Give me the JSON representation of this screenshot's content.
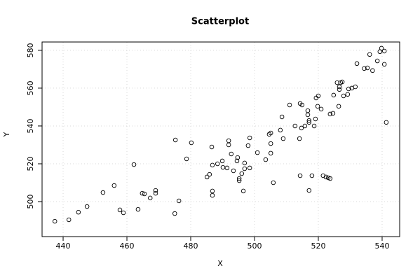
{
  "chart_data": {
    "type": "scatter",
    "title": "Scatterplot",
    "x_label": "X",
    "y_label": "Y",
    "x": [
      437.4,
      441.8,
      444.8,
      447.5,
      452.5,
      456.0,
      457.8,
      458.9,
      462.2,
      463.5,
      464.8,
      465.5,
      467.3,
      469.0,
      469.0,
      475.0,
      475.2,
      476.3,
      478.7,
      480.2,
      485.1,
      485.9,
      486.6,
      486.8,
      486.8,
      486.8,
      488.4,
      489.9,
      490.1,
      491.4,
      491.9,
      491.9,
      492.7,
      493.4,
      494.5,
      494.7,
      495.2,
      495.2,
      496.0,
      496.5,
      496.9,
      496.9,
      498.0,
      498.5,
      498.5,
      500.9,
      503.5,
      504.6,
      505.1,
      505.1,
      505.1,
      505.9,
      508.1,
      508.6,
      509.0,
      511.0,
      512.7,
      514.1,
      514.3,
      514.3,
      514.7,
      514.9,
      515.8,
      516.7,
      516.7,
      517.1,
      517.1,
      517.1,
      518.0,
      518.7,
      519.1,
      519.3,
      520.0,
      519.8,
      520.9,
      521.5,
      522.4,
      523.1,
      523.7,
      523.7,
      524.6,
      524.8,
      525.9,
      526.4,
      526.6,
      526.6,
      527.0,
      527.5,
      527.9,
      529.2,
      529.5,
      530.5,
      531.6,
      532.1,
      534.4,
      535.4,
      536.1,
      537.0,
      538.5,
      539.3,
      539.8,
      540.7,
      540.7,
      541.3
    ],
    "values": [
      489.6,
      490.4,
      494.4,
      497.4,
      504.8,
      508.5,
      495.6,
      494.1,
      519.6,
      495.9,
      504.4,
      504.1,
      501.9,
      505.9,
      504.4,
      493.7,
      532.6,
      500.4,
      522.6,
      531.1,
      513.0,
      514.4,
      528.9,
      519.3,
      505.6,
      503.3,
      520.0,
      521.5,
      518.1,
      517.8,
      532.2,
      530.0,
      525.2,
      516.3,
      521.5,
      523.3,
      512.2,
      511.1,
      514.8,
      505.6,
      517.4,
      520.4,
      529.6,
      517.8,
      533.7,
      525.9,
      522.2,
      535.6,
      536.3,
      530.7,
      525.6,
      510.0,
      537.8,
      544.8,
      533.3,
      551.1,
      540.0,
      533.3,
      513.7,
      551.9,
      538.9,
      551.1,
      540.0,
      548.1,
      545.9,
      542.9,
      541.9,
      505.9,
      513.7,
      540.0,
      543.7,
      554.8,
      555.9,
      550.4,
      548.9,
      513.7,
      513.0,
      512.6,
      512.2,
      546.3,
      546.7,
      556.3,
      562.9,
      550.4,
      560.7,
      559.3,
      562.9,
      563.3,
      555.9,
      556.7,
      559.6,
      560.0,
      560.7,
      573.0,
      570.4,
      570.7,
      577.8,
      569.3,
      574.4,
      579.3,
      581.1,
      579.6,
      572.6,
      541.9
    ],
    "color": "#000000",
    "xlim": [
      433.4,
      545.5
    ],
    "ylim": [
      481.5,
      584.4
    ],
    "xticks": [
      440,
      460,
      480,
      500,
      520,
      540
    ],
    "yticks": [
      500,
      520,
      540,
      560,
      580
    ],
    "grid": true
  }
}
